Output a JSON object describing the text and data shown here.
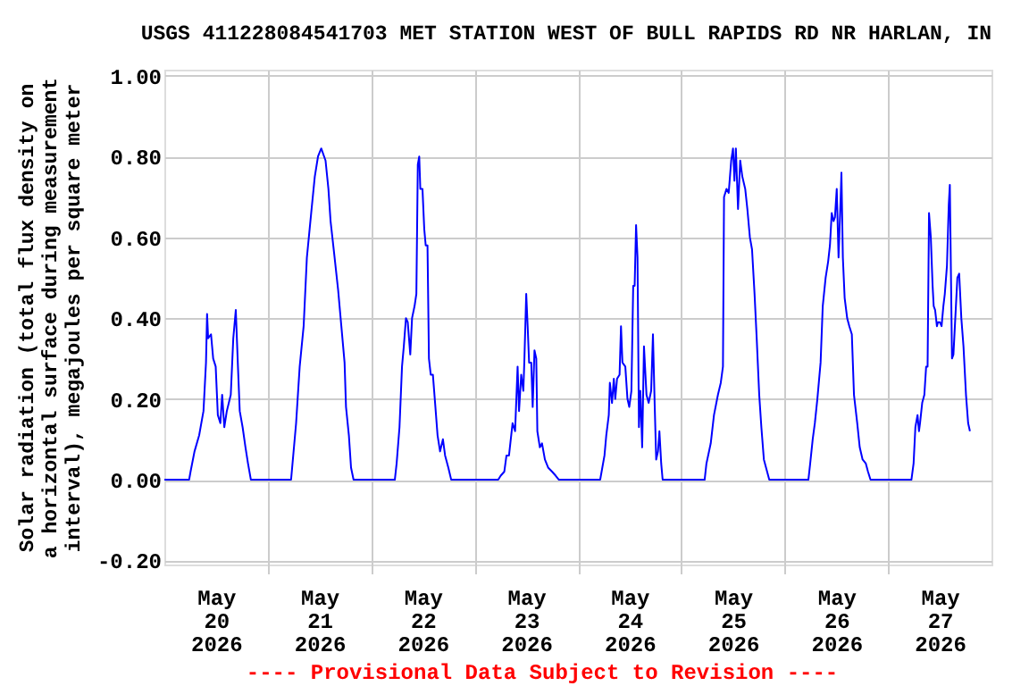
{
  "chart_data": {
    "type": "line",
    "title": "USGS 411228084541703 MET STATION WEST OF BULL RAPIDS RD NR HARLAN, IN",
    "ylabel": "Solar radiation (total flux density on\na horizontal surface during measurement\ninterval), megajoules per square meter",
    "annotations": [
      "---- Provisional Data Subject to Revision ----"
    ],
    "x": [
      "2026-05-20T00:00",
      "2026-05-20T05:45",
      "2026-05-20T06:05",
      "2026-05-20T07:00",
      "2026-05-20T08:05",
      "2026-05-20T09:05",
      "2026-05-20T09:40",
      "2026-05-20T09:55",
      "2026-05-20T10:10",
      "2026-05-20T10:50",
      "2026-05-20T11:20",
      "2026-05-20T11:55",
      "2026-05-20T12:25",
      "2026-05-20T13:00",
      "2026-05-20T13:25",
      "2026-05-20T13:55",
      "2026-05-20T14:30",
      "2026-05-20T15:25",
      "2026-05-20T16:00",
      "2026-05-20T16:35",
      "2026-05-20T17:05",
      "2026-05-20T17:30",
      "2026-05-20T18:10",
      "2026-05-20T18:50",
      "2026-05-20T19:25",
      "2026-05-20T20:05",
      "2026-05-21T05:25",
      "2026-05-21T05:50",
      "2026-05-21T06:35",
      "2026-05-21T07:25",
      "2026-05-21T08:20",
      "2026-05-21T09:05",
      "2026-05-21T10:05",
      "2026-05-21T10:55",
      "2026-05-21T11:40",
      "2026-05-21T12:25",
      "2026-05-21T13:25",
      "2026-05-21T14:05",
      "2026-05-21T14:35",
      "2026-05-21T15:25",
      "2026-05-21T16:20",
      "2026-05-21T17:05",
      "2026-05-21T17:50",
      "2026-05-21T18:10",
      "2026-05-21T18:50",
      "2026-05-21T19:20",
      "2026-05-21T19:55",
      "2026-05-22T05:30",
      "2026-05-22T05:55",
      "2026-05-22T06:35",
      "2026-05-22T07:10",
      "2026-05-22T07:35",
      "2026-05-22T08:05",
      "2026-05-22T08:30",
      "2026-05-22T09:05",
      "2026-05-22T09:30",
      "2026-05-22T10:05",
      "2026-05-22T10:30",
      "2026-05-22T10:50",
      "2026-05-22T11:10",
      "2026-05-22T11:25",
      "2026-05-22T11:55",
      "2026-05-22T12:20",
      "2026-05-22T12:40",
      "2026-05-22T13:05",
      "2026-05-22T13:25",
      "2026-05-22T13:50",
      "2026-05-22T14:20",
      "2026-05-22T14:55",
      "2026-05-22T15:25",
      "2026-05-22T16:00",
      "2026-05-22T16:40",
      "2026-05-22T17:10",
      "2026-05-22T17:55",
      "2026-05-22T18:35",
      "2026-05-23T05:30",
      "2026-05-23T06:05",
      "2026-05-23T06:55",
      "2026-05-23T07:25",
      "2026-05-23T08:00",
      "2026-05-23T08:50",
      "2026-05-23T09:25",
      "2026-05-23T10:00",
      "2026-05-23T10:20",
      "2026-05-23T10:50",
      "2026-05-23T11:20",
      "2026-05-23T11:35",
      "2026-05-23T12:00",
      "2026-05-23T12:20",
      "2026-05-23T12:40",
      "2026-05-23T13:10",
      "2026-05-23T13:30",
      "2026-05-23T13:55",
      "2026-05-23T14:20",
      "2026-05-23T14:35",
      "2026-05-23T15:10",
      "2026-05-23T15:40",
      "2026-05-23T16:20",
      "2026-05-23T17:05",
      "2026-05-23T18:00",
      "2026-05-23T18:50",
      "2026-05-23T19:35",
      "2026-05-24T05:10",
      "2026-05-24T05:30",
      "2026-05-24T06:10",
      "2026-05-24T06:35",
      "2026-05-24T07:10",
      "2026-05-24T07:25",
      "2026-05-24T07:55",
      "2026-05-24T08:20",
      "2026-05-24T08:40",
      "2026-05-24T09:05",
      "2026-05-24T09:40",
      "2026-05-24T10:00",
      "2026-05-24T10:20",
      "2026-05-24T11:00",
      "2026-05-24T11:30",
      "2026-05-24T11:55",
      "2026-05-24T12:25",
      "2026-05-24T12:50",
      "2026-05-24T13:10",
      "2026-05-24T13:30",
      "2026-05-24T13:50",
      "2026-05-24T14:10",
      "2026-05-24T14:30",
      "2026-05-24T14:55",
      "2026-05-24T15:20",
      "2026-05-24T15:55",
      "2026-05-24T16:25",
      "2026-05-24T17:00",
      "2026-05-24T17:25",
      "2026-05-24T17:50",
      "2026-05-24T18:10",
      "2026-05-24T18:35",
      "2026-05-24T18:55",
      "2026-05-24T19:20",
      "2026-05-24T19:40",
      "2026-05-25T05:25",
      "2026-05-25T05:50",
      "2026-05-25T06:50",
      "2026-05-25T07:35",
      "2026-05-25T08:30",
      "2026-05-25T09:10",
      "2026-05-25T09:40",
      "2026-05-25T09:55",
      "2026-05-25T10:30",
      "2026-05-25T11:00",
      "2026-05-25T11:35",
      "2026-05-25T12:00",
      "2026-05-25T12:20",
      "2026-05-25T12:40",
      "2026-05-25T13:10",
      "2026-05-25T13:40",
      "2026-05-25T14:10",
      "2026-05-25T14:50",
      "2026-05-25T15:20",
      "2026-05-25T15:55",
      "2026-05-25T16:25",
      "2026-05-25T17:00",
      "2026-05-25T17:30",
      "2026-05-25T18:05",
      "2026-05-25T18:35",
      "2026-05-25T19:10",
      "2026-05-25T19:55",
      "2026-05-25T20:25",
      "2026-05-26T05:30",
      "2026-05-26T05:55",
      "2026-05-26T06:30",
      "2026-05-26T07:00",
      "2026-05-26T07:35",
      "2026-05-26T08:20",
      "2026-05-26T08:50",
      "2026-05-26T09:30",
      "2026-05-26T10:05",
      "2026-05-26T10:30",
      "2026-05-26T10:55",
      "2026-05-26T11:20",
      "2026-05-26T11:40",
      "2026-05-26T12:05",
      "2026-05-26T12:30",
      "2026-05-26T13:00",
      "2026-05-26T13:10",
      "2026-05-26T13:30",
      "2026-05-26T13:55",
      "2026-05-26T14:30",
      "2026-05-26T15:00",
      "2026-05-26T15:35",
      "2026-05-26T16:05",
      "2026-05-26T16:50",
      "2026-05-26T17:25",
      "2026-05-26T18:05",
      "2026-05-26T18:50",
      "2026-05-26T19:20",
      "2026-05-26T19:55",
      "2026-05-27T05:25",
      "2026-05-27T05:55",
      "2026-05-27T06:20",
      "2026-05-27T06:50",
      "2026-05-27T07:10",
      "2026-05-27T07:25",
      "2026-05-27T07:55",
      "2026-05-27T08:25",
      "2026-05-27T08:50",
      "2026-05-27T09:10",
      "2026-05-27T09:30",
      "2026-05-27T09:55",
      "2026-05-27T10:20",
      "2026-05-27T10:35",
      "2026-05-27T10:55",
      "2026-05-27T11:20",
      "2026-05-27T11:35",
      "2026-05-27T12:00",
      "2026-05-27T12:25",
      "2026-05-27T12:50",
      "2026-05-27T13:10",
      "2026-05-27T13:40",
      "2026-05-27T14:05",
      "2026-05-27T14:20",
      "2026-05-27T14:50",
      "2026-05-27T15:10",
      "2026-05-27T16:05",
      "2026-05-27T16:30",
      "2026-05-27T17:00",
      "2026-05-27T17:30",
      "2026-05-27T18:05",
      "2026-05-27T18:35",
      "2026-05-27T19:00"
    ],
    "series": [
      {
        "color": "#0000ff",
        "values": [
          0,
          0,
          0.02,
          0.07,
          0.11,
          0.17,
          0.29,
          0.41,
          0.35,
          0.36,
          0.3,
          0.28,
          0.16,
          0.14,
          0.21,
          0.13,
          0.17,
          0.21,
          0.35,
          0.42,
          0.28,
          0.17,
          0.13,
          0.08,
          0.04,
          0,
          0,
          0.05,
          0.14,
          0.28,
          0.38,
          0.55,
          0.66,
          0.75,
          0.8,
          0.82,
          0.79,
          0.72,
          0.64,
          0.56,
          0.47,
          0.38,
          0.29,
          0.18,
          0.11,
          0.03,
          0,
          0,
          0.04,
          0.13,
          0.28,
          0.33,
          0.4,
          0.39,
          0.31,
          0.4,
          0.43,
          0.46,
          0.78,
          0.8,
          0.72,
          0.72,
          0.62,
          0.58,
          0.58,
          0.3,
          0.26,
          0.26,
          0.18,
          0.11,
          0.07,
          0.1,
          0.06,
          0.03,
          0,
          0,
          0.01,
          0.02,
          0.06,
          0.06,
          0.14,
          0.12,
          0.28,
          0.17,
          0.26,
          0.22,
          0.3,
          0.46,
          0.38,
          0.29,
          0.29,
          0.18,
          0.32,
          0.3,
          0.12,
          0.08,
          0.09,
          0.05,
          0.03,
          0.02,
          0.01,
          0,
          0,
          0.02,
          0.06,
          0.11,
          0.16,
          0.24,
          0.19,
          0.25,
          0.2,
          0.25,
          0.26,
          0.38,
          0.29,
          0.28,
          0.2,
          0.18,
          0.22,
          0.48,
          0.48,
          0.63,
          0.55,
          0.13,
          0.22,
          0.08,
          0.33,
          0.21,
          0.19,
          0.22,
          0.36,
          0.18,
          0.05,
          0.07,
          0.12,
          0.04,
          0,
          0,
          0.04,
          0.09,
          0.16,
          0.21,
          0.24,
          0.28,
          0.7,
          0.72,
          0.71,
          0.79,
          0.82,
          0.74,
          0.82,
          0.67,
          0.79,
          0.75,
          0.72,
          0.67,
          0.6,
          0.57,
          0.46,
          0.35,
          0.21,
          0.13,
          0.05,
          0.02,
          0,
          0,
          0.04,
          0.1,
          0.14,
          0.2,
          0.29,
          0.43,
          0.5,
          0.54,
          0.58,
          0.66,
          0.64,
          0.65,
          0.72,
          0.55,
          0.7,
          0.76,
          0.55,
          0.45,
          0.4,
          0.38,
          0.36,
          0.21,
          0.14,
          0.08,
          0.05,
          0.04,
          0.02,
          0,
          0,
          0.04,
          0.13,
          0.16,
          0.12,
          0.14,
          0.19,
          0.21,
          0.28,
          0.28,
          0.66,
          0.6,
          0.48,
          0.43,
          0.42,
          0.38,
          0.39,
          0.39,
          0.38,
          0.43,
          0.46,
          0.53,
          0.68,
          0.73,
          0.3,
          0.31,
          0.5,
          0.51,
          0.4,
          0.33,
          0.21,
          0.14,
          0.12
        ]
      }
    ],
    "xlim": [
      "2026-05-20T00:00",
      "2026-05-28T00:00"
    ],
    "xticks": [
      {
        "value": "2026-05-20T12:00",
        "label": "May\n20\n2026"
      },
      {
        "value": "2026-05-21T00:00",
        "label": null
      },
      {
        "value": "2026-05-21T12:00",
        "label": "May\n21\n2026"
      },
      {
        "value": "2026-05-22T00:00",
        "label": null
      },
      {
        "value": "2026-05-22T12:00",
        "label": "May\n22\n2026"
      },
      {
        "value": "2026-05-23T00:00",
        "label": null
      },
      {
        "value": "2026-05-23T12:00",
        "label": "May\n23\n2026"
      },
      {
        "value": "2026-05-24T00:00",
        "label": null
      },
      {
        "value": "2026-05-24T12:00",
        "label": "May\n24\n2026"
      },
      {
        "value": "2026-05-25T00:00",
        "label": null
      },
      {
        "value": "2026-05-25T12:00",
        "label": "May\n25\n2026"
      },
      {
        "value": "2026-05-26T00:00",
        "label": null
      },
      {
        "value": "2026-05-26T12:00",
        "label": "May\n26\n2026"
      },
      {
        "value": "2026-05-27T00:00",
        "label": null
      },
      {
        "value": "2026-05-27T12:00",
        "label": "May\n27\n2026"
      }
    ],
    "ylim": [
      -0.21,
      1.015
    ],
    "yticks": [
      {
        "value": -0.2,
        "label": "-0.20"
      },
      {
        "value": 0,
        "label": "0.00"
      },
      {
        "value": 0.2,
        "label": "0.20"
      },
      {
        "value": 0.4,
        "label": "0.40"
      },
      {
        "value": 0.6,
        "label": "0.60"
      },
      {
        "value": 0.8,
        "label": "0.80"
      },
      {
        "value": 1.0,
        "label": "1.00"
      }
    ],
    "grid": true
  }
}
